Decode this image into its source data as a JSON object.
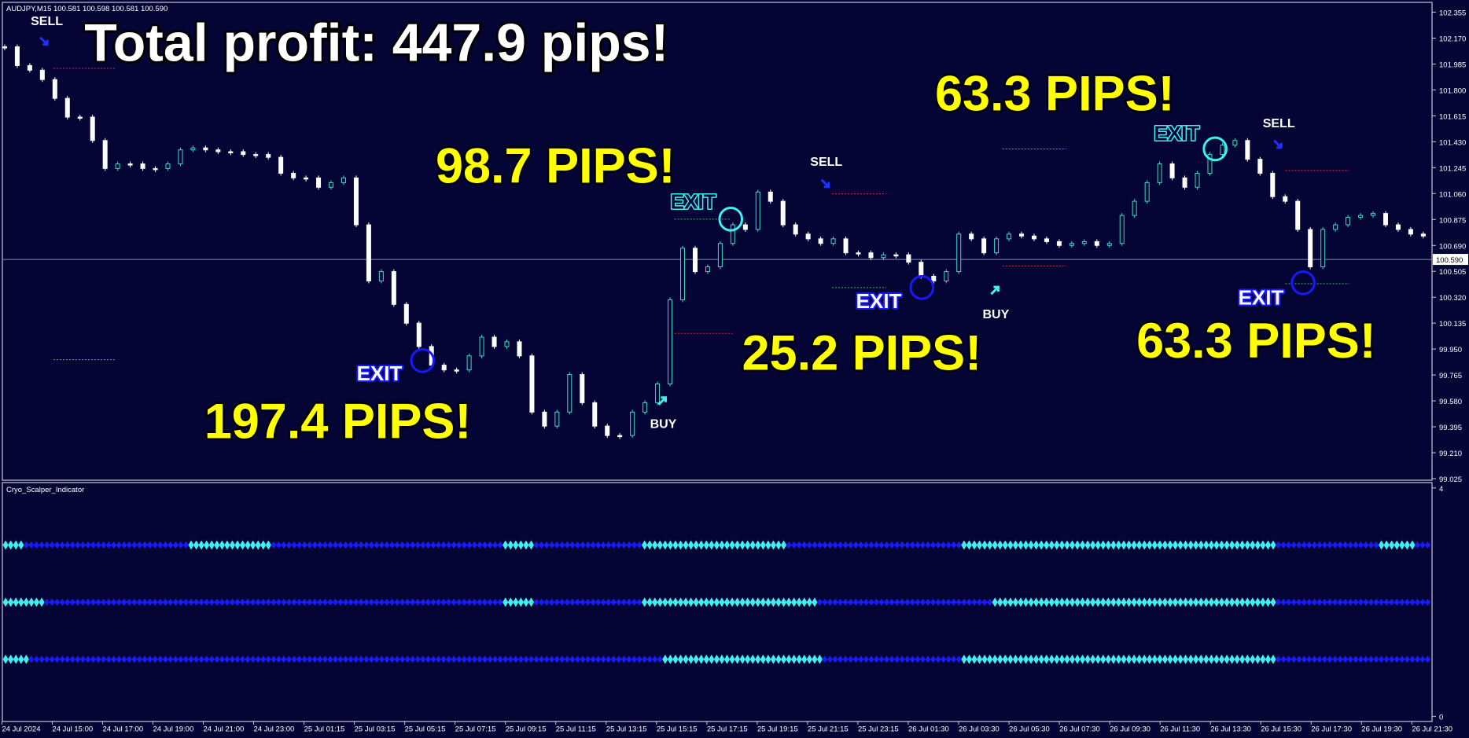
{
  "header": "AUDJPY,M15  100.581 100.598 100.581 100.590",
  "chart_data": {
    "type": "candlestick",
    "title": "Total profit: 447.9 pips!",
    "time_labels": [
      "24 Jul 2024",
      "24 Jul 15:00",
      "24 Jul 17:00",
      "24 Jul 19:00",
      "24 Jul 21:00",
      "24 Jul 23:00",
      "25 Jul 01:15",
      "25 Jul 03:15",
      "25 Jul 05:15",
      "25 Jul 07:15",
      "25 Jul 09:15",
      "25 Jul 11:15",
      "25 Jul 13:15",
      "25 Jul 15:15",
      "25 Jul 17:15",
      "25 Jul 19:15",
      "25 Jul 21:15",
      "25 Jul 23:15",
      "26 Jul 01:30",
      "26 Jul 03:30",
      "26 Jul 05:30",
      "26 Jul 07:30",
      "26 Jul 09:30",
      "26 Jul 11:30",
      "26 Jul 13:30",
      "26 Jul 15:30",
      "26 Jul 17:30",
      "26 Jul 19:30",
      "26 Jul 21:30"
    ],
    "close": [
      102.108,
      101.974,
      101.941,
      101.874,
      101.74,
      101.606,
      101.606,
      101.439,
      101.239,
      101.272,
      101.272,
      101.239,
      101.239,
      101.272,
      101.372,
      101.386,
      101.372,
      101.359,
      101.359,
      101.339,
      101.339,
      101.319,
      101.205,
      101.172,
      101.172,
      101.105,
      101.138,
      101.172,
      100.837,
      100.436,
      100.503,
      100.269,
      100.135,
      99.968,
      99.835,
      99.801,
      99.801,
      99.901,
      100.035,
      99.968,
      100.002,
      99.901,
      99.5,
      99.4,
      99.5,
      99.768,
      99.567,
      99.4,
      99.333,
      99.333,
      99.5,
      99.567,
      99.701,
      100.302,
      100.67,
      100.503,
      100.537,
      100.704,
      100.837,
      100.804,
      101.071,
      101.005,
      100.837,
      100.771,
      100.737,
      100.704,
      100.737,
      100.637,
      100.637,
      100.603,
      100.623,
      100.623,
      100.57,
      100.47,
      100.436,
      100.503,
      100.771,
      100.737,
      100.637,
      100.737,
      100.771,
      100.757,
      100.737,
      100.717,
      100.69,
      100.704,
      100.717,
      100.69,
      100.704,
      100.904,
      101.005,
      101.138,
      101.272,
      101.172,
      101.105,
      101.205,
      101.339,
      101.406,
      101.439,
      101.305,
      101.205,
      101.038,
      101.005,
      100.804,
      100.537,
      100.804,
      100.837,
      100.891,
      100.904,
      100.918,
      100.837,
      100.804,
      100.771,
      100.757
    ],
    "ylim": [
      99.012,
      102.422
    ],
    "yticks": [
      99.025,
      {
        "value": 99.21,
        "label": "99.210"
      },
      99.395,
      {
        "value": 99.58,
        "label": "99.580"
      },
      99.765,
      {
        "value": 99.95,
        "label": "99.950"
      },
      100.135,
      {
        "value": 100.32,
        "label": "100.320"
      },
      100.505,
      {
        "value": 100.69,
        "label": "100.690"
      },
      100.875,
      {
        "value": 101.06,
        "label": "101.060"
      },
      101.245,
      {
        "value": 101.43,
        "label": "101.430"
      },
      101.615,
      {
        "value": 101.8,
        "label": "101.800"
      },
      101.985,
      {
        "value": 102.17,
        "label": "102.170"
      },
      102.355
    ],
    "last_price": {
      "value": 100.59,
      "label": "100.590"
    },
    "up_color": "#3fd8c8",
    "down_color": "#ffffff",
    "annotations": [
      "98.7 PIPS!",
      "63.3 PIPS!",
      "197.4 PIPS!",
      "25.2 PIPS!",
      "63.3 PIPS!"
    ],
    "signals": [
      "SELL",
      "SELL",
      "SELL",
      "BUY",
      "BUY"
    ],
    "exits": [
      "EXIT",
      "EXIT",
      "EXIT",
      "EXIT",
      "EXIT"
    ]
  },
  "indicator": {
    "title": "Cryo_Scalper_Indicator",
    "ylim": [
      0,
      4
    ],
    "yticks": [
      0,
      4
    ],
    "rows": [
      {
        "level": 3
      },
      {
        "level": 2
      },
      {
        "level": 1
      }
    ],
    "colors": [
      "#1a1aff",
      "#3ff0f0"
    ]
  }
}
